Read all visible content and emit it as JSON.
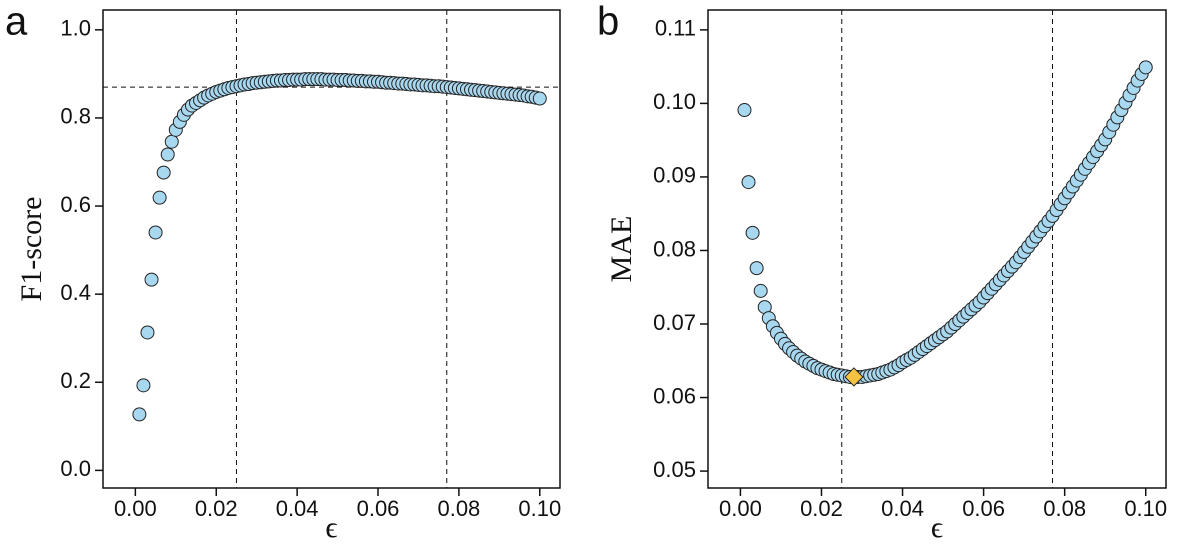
{
  "chart_data": [
    {
      "type": "scatter",
      "panel_label": "a",
      "x_label": "ϵ",
      "y_label": "F1-score",
      "xlim": [
        -0.008,
        0.105
      ],
      "ylim": [
        -0.04,
        1.045
      ],
      "xticks": [
        {
          "value": 0,
          "label": "0.00"
        },
        {
          "value": 0.02,
          "label": "0.02"
        },
        {
          "value": 0.04,
          "label": "0.04"
        },
        {
          "value": 0.06,
          "label": "0.06"
        },
        {
          "value": 0.08,
          "label": "0.08"
        },
        {
          "value": 0.1,
          "label": "0.10"
        }
      ],
      "yticks": [
        {
          "value": 0,
          "label": "0.0"
        },
        0.2,
        0.4,
        0.6,
        0.8,
        {
          "value": 1,
          "label": "1.0"
        }
      ],
      "vlines": [
        0.025,
        0.077
      ],
      "hlines": [
        0.87
      ],
      "color": "#a8d8f0",
      "x": [
        0.001,
        0.002,
        0.003,
        0.004,
        0.005,
        0.006,
        0.007,
        0.008,
        0.009,
        0.01,
        0.011,
        0.012,
        0.013,
        0.014,
        0.015,
        0.016,
        0.017,
        0.018,
        0.019,
        0.02,
        0.021,
        0.022,
        0.023,
        0.024,
        0.025,
        0.026,
        0.027,
        0.028,
        0.029,
        0.03,
        0.031,
        0.032,
        0.033,
        0.034,
        0.035,
        0.036,
        0.037,
        0.038,
        0.039,
        0.04,
        0.041,
        0.042,
        0.043,
        0.044,
        0.045,
        0.046,
        0.047,
        0.048,
        0.049,
        0.05,
        0.051,
        0.052,
        0.053,
        0.054,
        0.055,
        0.056,
        0.057,
        0.058,
        0.059,
        0.06,
        0.061,
        0.062,
        0.063,
        0.064,
        0.065,
        0.066,
        0.067,
        0.068,
        0.069,
        0.07,
        0.071,
        0.072,
        0.073,
        0.074,
        0.075,
        0.076,
        0.077,
        0.078,
        0.079,
        0.08,
        0.081,
        0.082,
        0.083,
        0.084,
        0.085,
        0.086,
        0.087,
        0.088,
        0.089,
        0.09,
        0.091,
        0.092,
        0.093,
        0.094,
        0.095,
        0.096,
        0.097,
        0.098,
        0.099,
        0.1
      ],
      "values": [
        0.127,
        0.193,
        0.313,
        0.433,
        0.54,
        0.619,
        0.676,
        0.717,
        0.746,
        0.773,
        0.791,
        0.807,
        0.819,
        0.828,
        0.834,
        0.84,
        0.846,
        0.851,
        0.855,
        0.859,
        0.862,
        0.865,
        0.868,
        0.87,
        0.872,
        0.874,
        0.876,
        0.877,
        0.879,
        0.88,
        0.881,
        0.882,
        0.883,
        0.884,
        0.885,
        0.885,
        0.886,
        0.886,
        0.887,
        0.887,
        0.887,
        0.888,
        0.888,
        0.888,
        0.888,
        0.888,
        0.887,
        0.887,
        0.887,
        0.886,
        0.886,
        0.886,
        0.885,
        0.885,
        0.884,
        0.884,
        0.883,
        0.883,
        0.882,
        0.882,
        0.881,
        0.88,
        0.88,
        0.879,
        0.878,
        0.878,
        0.877,
        0.876,
        0.876,
        0.875,
        0.874,
        0.874,
        0.873,
        0.872,
        0.872,
        0.871,
        0.87,
        0.869,
        0.868,
        0.867,
        0.866,
        0.865,
        0.864,
        0.863,
        0.862,
        0.861,
        0.86,
        0.859,
        0.858,
        0.857,
        0.856,
        0.855,
        0.854,
        0.853,
        0.852,
        0.851,
        0.849,
        0.848,
        0.846,
        0.844
      ]
    },
    {
      "type": "scatter",
      "panel_label": "b",
      "x_label": "ϵ",
      "y_label": "MAE",
      "xlim": [
        -0.008,
        0.105
      ],
      "ylim": [
        0.0477,
        0.1127
      ],
      "xticks": [
        {
          "value": 0,
          "label": "0.00"
        },
        {
          "value": 0.02,
          "label": "0.02"
        },
        {
          "value": 0.04,
          "label": "0.04"
        },
        {
          "value": 0.06,
          "label": "0.06"
        },
        {
          "value": 0.08,
          "label": "0.08"
        },
        {
          "value": 0.1,
          "label": "0.10"
        }
      ],
      "yticks": [
        0.05,
        0.06,
        0.07,
        0.08,
        0.09,
        {
          "value": 0.1,
          "label": "0.10"
        },
        0.11
      ],
      "vlines": [
        0.025,
        0.077
      ],
      "hlines": [],
      "color": "#a8d8f0",
      "highlight": {
        "x": 0.028,
        "y": 0.0628,
        "color": "#f5c242"
      },
      "x": [
        0.001,
        0.002,
        0.003,
        0.004,
        0.005,
        0.006,
        0.007,
        0.008,
        0.009,
        0.01,
        0.011,
        0.012,
        0.013,
        0.014,
        0.015,
        0.016,
        0.017,
        0.018,
        0.019,
        0.02,
        0.021,
        0.022,
        0.023,
        0.024,
        0.025,
        0.026,
        0.027,
        0.028,
        0.029,
        0.03,
        0.031,
        0.032,
        0.033,
        0.034,
        0.035,
        0.036,
        0.037,
        0.038,
        0.039,
        0.04,
        0.041,
        0.042,
        0.043,
        0.044,
        0.045,
        0.046,
        0.047,
        0.048,
        0.049,
        0.05,
        0.051,
        0.052,
        0.053,
        0.054,
        0.055,
        0.056,
        0.057,
        0.058,
        0.059,
        0.06,
        0.061,
        0.062,
        0.063,
        0.064,
        0.065,
        0.066,
        0.067,
        0.068,
        0.069,
        0.07,
        0.071,
        0.072,
        0.073,
        0.074,
        0.075,
        0.076,
        0.077,
        0.078,
        0.079,
        0.08,
        0.081,
        0.082,
        0.083,
        0.084,
        0.085,
        0.086,
        0.087,
        0.088,
        0.089,
        0.09,
        0.091,
        0.092,
        0.093,
        0.094,
        0.095,
        0.096,
        0.097,
        0.098,
        0.099,
        0.1
      ],
      "values": [
        0.0991,
        0.0893,
        0.0824,
        0.0776,
        0.0745,
        0.0723,
        0.0708,
        0.0697,
        0.0688,
        0.068,
        0.0673,
        0.0667,
        0.0662,
        0.0657,
        0.0653,
        0.0649,
        0.0646,
        0.0643,
        0.064,
        0.0638,
        0.0636,
        0.0634,
        0.0632,
        0.0631,
        0.063,
        0.0629,
        0.0628,
        0.0628,
        0.0628,
        0.0628,
        0.0629,
        0.063,
        0.0631,
        0.0632,
        0.0634,
        0.0636,
        0.0638,
        0.0641,
        0.0644,
        0.0648,
        0.0651,
        0.0654,
        0.0658,
        0.0662,
        0.0666,
        0.067,
        0.0674,
        0.0678,
        0.0682,
        0.0686,
        0.069,
        0.0695,
        0.07,
        0.0705,
        0.071,
        0.0715,
        0.072,
        0.0725,
        0.073,
        0.0736,
        0.0742,
        0.0748,
        0.0754,
        0.076,
        0.0766,
        0.0772,
        0.0778,
        0.0784,
        0.0791,
        0.0798,
        0.0805,
        0.0812,
        0.0819,
        0.0826,
        0.0833,
        0.084,
        0.0847,
        0.0855,
        0.0863,
        0.0871,
        0.0879,
        0.0887,
        0.0895,
        0.0903,
        0.0911,
        0.0919,
        0.0927,
        0.0935,
        0.0943,
        0.0951,
        0.0961,
        0.0971,
        0.0981,
        0.0991,
        0.1001,
        0.1011,
        0.1021,
        0.1031,
        0.104,
        0.1049
      ]
    }
  ]
}
